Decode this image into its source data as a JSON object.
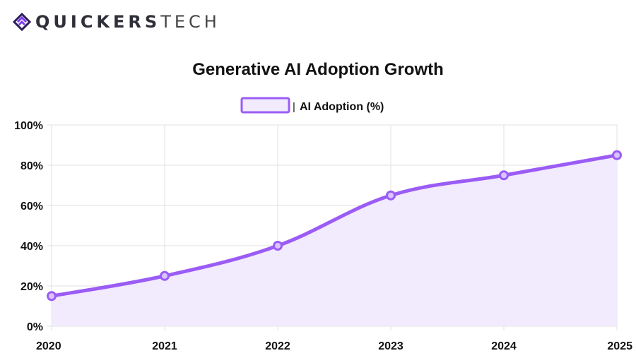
{
  "brand": {
    "name_bold": "QUICKERS",
    "name_light": "TECH",
    "logo_icon": "chevron-mark-icon",
    "colors": {
      "icon_primary": "#7c3aed",
      "icon_dark": "#2b1d59"
    }
  },
  "chart_data": {
    "type": "line",
    "title": "Generative AI Adoption Growth",
    "xlabel": "",
    "ylabel": "",
    "categories": [
      "2020",
      "2021",
      "2022",
      "2023",
      "2024",
      "2025"
    ],
    "series": [
      {
        "name": "AI Adoption (%)",
        "values": [
          15,
          25,
          40,
          65,
          75,
          85
        ],
        "color": "#9b5cf5",
        "fill": "#f2eafd"
      }
    ],
    "ylim": [
      0,
      100
    ],
    "yticks": [
      0,
      20,
      40,
      60,
      80,
      100
    ],
    "ytick_labels": [
      "0%",
      "20%",
      "40%",
      "60%",
      "80%",
      "100%"
    ],
    "grid": true,
    "legend": "top-center",
    "area_fill": true
  }
}
